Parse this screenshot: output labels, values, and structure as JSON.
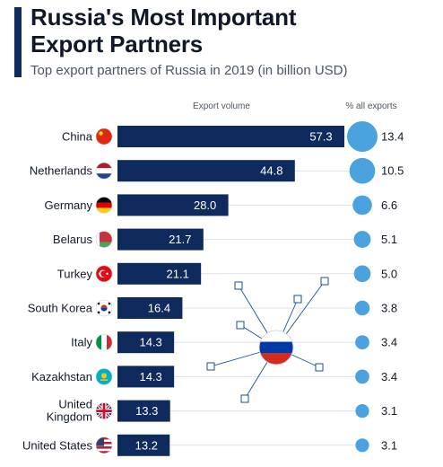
{
  "header": {
    "title_line1": "Russia's Most Important",
    "title_line2": "Export Partners",
    "subtitle": "Top export partners of Russia in 2019 (in billion USD)"
  },
  "columns": {
    "volume_label": "Export volume",
    "share_label": "% all exports"
  },
  "colors": {
    "bar": "#0f2a5c",
    "circle": "#4aa3df",
    "accent": "#0f2a5c",
    "network": "#1b4f8f"
  },
  "chart_data": {
    "type": "bar",
    "orientation": "horizontal",
    "categories": [
      "China",
      "Netherlands",
      "Germany",
      "Belarus",
      "Turkey",
      "South Korea",
      "Italy",
      "Kazakhstan",
      "United Kingdom",
      "United States"
    ],
    "series": [
      {
        "name": "Export volume",
        "values": [
          57.3,
          44.8,
          28.0,
          21.7,
          21.1,
          16.4,
          14.3,
          14.3,
          13.3,
          13.2
        ]
      },
      {
        "name": "% all exports",
        "values": [
          13.4,
          10.5,
          6.6,
          5.1,
          5.0,
          3.8,
          3.4,
          3.4,
          3.1,
          3.1
        ]
      }
    ],
    "value_labels": [
      "57.3",
      "44.8",
      "28.0",
      "21.7",
      "21.1",
      "16.4",
      "14.3",
      "14.3",
      "13.3",
      "13.2"
    ],
    "share_labels": [
      "13.4",
      "10.5",
      "6.6",
      "5.1",
      "5.0",
      "3.8",
      "3.4",
      "3.4",
      "3.1",
      "3.1"
    ],
    "xlim": [
      0,
      57.3
    ],
    "grid": true,
    "icons": [
      "china-flag-icon",
      "netherlands-flag-icon",
      "germany-flag-icon",
      "belarus-flag-icon",
      "turkey-flag-icon",
      "south-korea-flag-icon",
      "italy-flag-icon",
      "kazakhstan-flag-icon",
      "united-kingdom-flag-icon",
      "united-states-flag-icon"
    ],
    "decoration": "russia-flag-network-icon"
  }
}
